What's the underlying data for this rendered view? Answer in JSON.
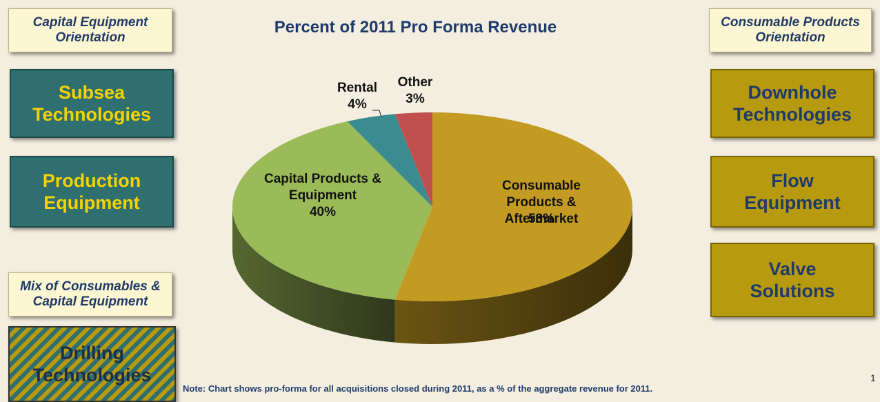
{
  "chart_data": {
    "type": "pie",
    "title": "Percent of 2011 Pro Forma Revenue",
    "categories": [
      "Consumable Products & Aftermarket",
      "Capital Products & Equipment",
      "Rental",
      "Other"
    ],
    "values": [
      53,
      40,
      4,
      3
    ],
    "value_labels": [
      "53%",
      "40%",
      "4%",
      "3%"
    ],
    "colors": [
      "#c39b22",
      "#9bbb59",
      "#3b8c90",
      "#c0504d"
    ]
  },
  "left_header": "Capital Equipment Orientation",
  "left_boxes": [
    "Subsea Technologies",
    "Production Equipment"
  ],
  "mix_header": "Mix of Consumables & Capital Equipment",
  "mix_box": "Drilling Technologies",
  "right_header": "Consumable Products Orientation",
  "right_boxes": [
    "Downhole Technologies",
    "Flow Equipment",
    "Valve Solutions"
  ],
  "note": "Note: Chart shows pro-forma for all acquisitions closed during 2011, as a % of the aggregate revenue for 2011.",
  "page_number": 1
}
